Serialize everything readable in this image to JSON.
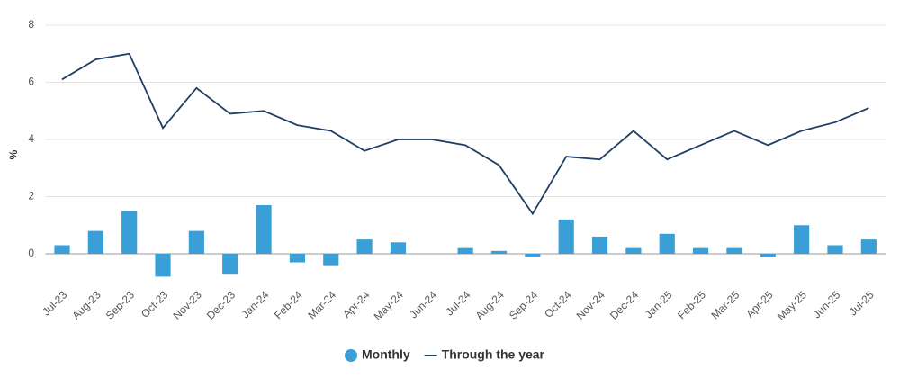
{
  "chart_data": {
    "type": "bar-line",
    "y_label": "%",
    "categories": [
      "Jul-23",
      "Aug-23",
      "Sep-23",
      "Oct-23",
      "Nov-23",
      "Dec-23",
      "Jan-24",
      "Feb-24",
      "Mar-24",
      "Apr-24",
      "May-24",
      "Jun-24",
      "Jul-24",
      "Aug-24",
      "Sep-24",
      "Oct-24",
      "Nov-24",
      "Dec-24",
      "Jan-25",
      "Feb-25",
      "Mar-25",
      "Apr-25",
      "May-25",
      "Jun-25",
      "Jul-25"
    ],
    "series": [
      {
        "name": "Monthly",
        "type": "bar",
        "color": "#3a9fd6",
        "values": [
          0.3,
          0.8,
          1.5,
          -0.8,
          0.8,
          -0.7,
          1.7,
          -0.3,
          -0.4,
          0.5,
          0.4,
          0.0,
          0.2,
          0.1,
          -0.1,
          1.2,
          0.6,
          0.2,
          0.7,
          0.2,
          0.2,
          -0.1,
          1.0,
          0.3,
          0.5
        ]
      },
      {
        "name": "Through the year",
        "type": "line",
        "color": "#1f3f63",
        "values": [
          6.1,
          6.8,
          7.0,
          4.4,
          5.8,
          4.9,
          5.0,
          4.5,
          4.3,
          3.6,
          4.0,
          4.0,
          3.8,
          3.1,
          1.4,
          3.4,
          3.3,
          4.3,
          3.3,
          3.8,
          4.3,
          3.8,
          4.3,
          4.6,
          5.1
        ]
      }
    ],
    "ylim": [
      -1,
      8
    ],
    "yticks": [
      0,
      2,
      4,
      6,
      8
    ],
    "grid": true,
    "legend": "bottom"
  }
}
